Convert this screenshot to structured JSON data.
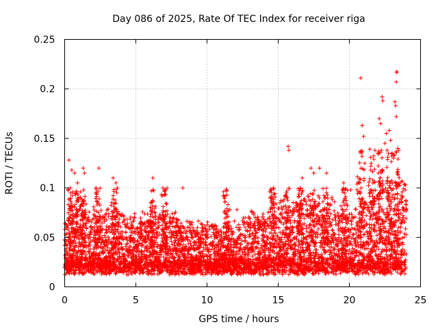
{
  "chart_data": {
    "type": "scatter",
    "title": "Day 086 of 2025, Rate Of TEC Index for receiver riga",
    "xlabel": "GPS time / hours",
    "ylabel": "ROTI / TECUs",
    "xlim": [
      0,
      25
    ],
    "ylim": [
      0,
      0.25
    ],
    "xticks": [
      0,
      5,
      10,
      15,
      20,
      25
    ],
    "yticks": [
      0,
      0.05,
      0.1,
      0.15,
      0.2,
      0.25
    ],
    "xtick_labels": [
      "0",
      "5",
      "10",
      "15",
      "20",
      "25"
    ],
    "ytick_labels": [
      "0",
      "0.05",
      "0.1",
      "0.15",
      "0.2",
      "0.25"
    ],
    "grid": true,
    "marker": "+",
    "color": "#ff0000",
    "series": [
      {
        "values_note": "dense per-epoch ROTI values; baseline ~0.02-0.04 TECU/min with peaks",
        "points": [
          [
            0.3,
            0.128
          ],
          [
            0.5,
            0.118
          ],
          [
            0.7,
            0.115
          ],
          [
            0.9,
            0.105
          ],
          [
            1.3,
            0.12
          ],
          [
            1.4,
            0.115
          ],
          [
            2.4,
            0.12
          ],
          [
            2.2,
            0.1
          ],
          [
            3.4,
            0.11
          ],
          [
            3.6,
            0.105
          ],
          [
            3.7,
            0.1
          ],
          [
            6.2,
            0.11
          ],
          [
            6.9,
            0.1
          ],
          [
            7.1,
            0.098
          ],
          [
            8.3,
            0.1
          ],
          [
            11.6,
            0.078
          ],
          [
            12.1,
            0.078
          ],
          [
            14.5,
            0.08
          ],
          [
            15.7,
            0.142
          ],
          [
            15.75,
            0.138
          ],
          [
            16.7,
            0.11
          ],
          [
            17.3,
            0.12
          ],
          [
            17.5,
            0.115
          ],
          [
            17.9,
            0.12
          ],
          [
            18.4,
            0.115
          ],
          [
            19.6,
            0.105
          ],
          [
            20.1,
            0.098
          ],
          [
            20.8,
            0.211
          ],
          [
            20.9,
            0.163
          ],
          [
            21.0,
            0.152
          ],
          [
            21.5,
            0.118
          ],
          [
            21.8,
            0.138
          ],
          [
            22.0,
            0.135
          ],
          [
            22.1,
            0.17
          ],
          [
            22.2,
            0.165
          ],
          [
            22.3,
            0.192
          ],
          [
            22.35,
            0.188
          ],
          [
            22.5,
            0.145
          ],
          [
            22.6,
            0.155
          ],
          [
            22.8,
            0.158
          ],
          [
            22.9,
            0.148
          ],
          [
            23.0,
            0.135
          ],
          [
            23.1,
            0.13
          ],
          [
            23.2,
            0.187
          ],
          [
            23.25,
            0.183
          ],
          [
            23.3,
            0.217
          ],
          [
            23.35,
            0.217
          ],
          [
            23.3,
            0.207
          ],
          [
            23.3,
            0.172
          ],
          [
            23.4,
            0.14
          ],
          [
            23.5,
            0.11
          ]
        ]
      }
    ]
  }
}
